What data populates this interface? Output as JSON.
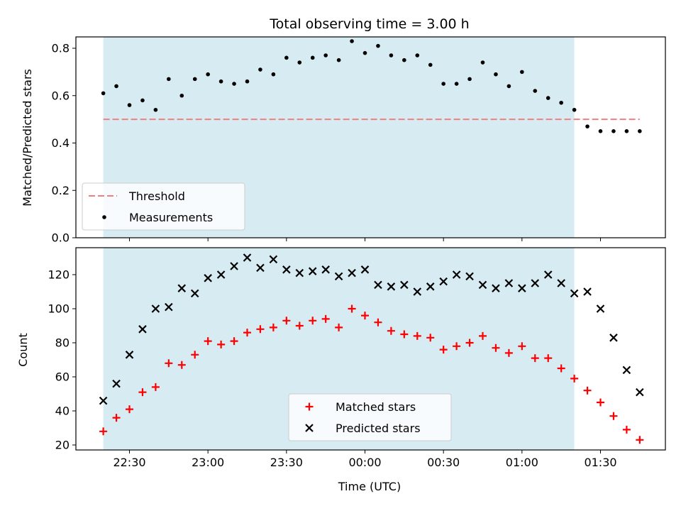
{
  "chart_data": [
    {
      "type": "scatter",
      "title": "Total observing time = 3.00 h",
      "xlabel": "",
      "ylabel": "Matched/Predicted stars",
      "ylim": [
        0,
        0.85
      ],
      "yticks": [
        "0.0",
        "0.2",
        "0.4",
        "0.6",
        "0.8"
      ],
      "shaded_span": [
        "22:20",
        "01:20"
      ],
      "threshold": 0.5,
      "legend_position": "lower-left",
      "legend": [
        "Threshold",
        "Measurements"
      ],
      "x": [
        "22:20",
        "22:25",
        "22:30",
        "22:35",
        "22:40",
        "22:45",
        "22:50",
        "22:55",
        "23:00",
        "23:05",
        "23:10",
        "23:15",
        "23:20",
        "23:25",
        "23:30",
        "23:35",
        "23:40",
        "23:45",
        "23:50",
        "23:55",
        "00:00",
        "00:05",
        "00:10",
        "00:15",
        "00:20",
        "00:25",
        "00:30",
        "00:35",
        "00:40",
        "00:45",
        "00:50",
        "00:55",
        "01:00",
        "01:05",
        "01:10",
        "01:15",
        "01:20",
        "01:25",
        "01:30",
        "01:35",
        "01:40",
        "01:45"
      ],
      "series": [
        {
          "name": "Measurements",
          "values": [
            0.61,
            0.64,
            0.56,
            0.58,
            0.54,
            0.67,
            0.6,
            0.67,
            0.69,
            0.66,
            0.65,
            0.66,
            0.71,
            0.69,
            0.76,
            0.74,
            0.76,
            0.77,
            0.75,
            0.83,
            0.78,
            0.81,
            0.77,
            0.75,
            0.77,
            0.73,
            0.65,
            0.65,
            0.67,
            0.74,
            0.69,
            0.64,
            0.7,
            0.62,
            0.59,
            0.57,
            0.54,
            0.47,
            0.45,
            0.45,
            0.45,
            0.45
          ]
        }
      ]
    },
    {
      "type": "scatter",
      "title": "",
      "xlabel": "Time (UTC)",
      "ylabel": "Count",
      "ylim": [
        18,
        135
      ],
      "yticks": [
        "20",
        "40",
        "60",
        "80",
        "100",
        "120"
      ],
      "xticks": [
        "22:30",
        "23:00",
        "23:30",
        "00:00",
        "00:30",
        "01:00",
        "01:30"
      ],
      "shaded_span": [
        "22:20",
        "01:20"
      ],
      "legend_position": "lower-center",
      "legend": [
        "Matched stars",
        "Predicted stars"
      ],
      "x": [
        "22:20",
        "22:25",
        "22:30",
        "22:35",
        "22:40",
        "22:45",
        "22:50",
        "22:55",
        "23:00",
        "23:05",
        "23:10",
        "23:15",
        "23:20",
        "23:25",
        "23:30",
        "23:35",
        "23:40",
        "23:45",
        "23:50",
        "23:55",
        "00:00",
        "00:05",
        "00:10",
        "00:15",
        "00:20",
        "00:25",
        "00:30",
        "00:35",
        "00:40",
        "00:45",
        "00:50",
        "00:55",
        "01:00",
        "01:05",
        "01:10",
        "01:15",
        "01:20",
        "01:25",
        "01:30",
        "01:35",
        "01:40",
        "01:45"
      ],
      "series": [
        {
          "name": "Matched stars",
          "values": [
            28,
            36,
            41,
            51,
            54,
            68,
            67,
            73,
            81,
            79,
            81,
            86,
            88,
            89,
            93,
            90,
            93,
            94,
            89,
            100,
            96,
            92,
            87,
            85,
            84,
            83,
            76,
            78,
            80,
            84,
            77,
            74,
            78,
            71,
            71,
            65,
            59,
            52,
            45,
            37,
            29,
            23
          ]
        },
        {
          "name": "Predicted stars",
          "values": [
            46,
            56,
            73,
            88,
            100,
            101,
            112,
            109,
            118,
            120,
            125,
            130,
            124,
            129,
            123,
            121,
            122,
            123,
            119,
            121,
            123,
            114,
            113,
            114,
            110,
            113,
            116,
            120,
            119,
            114,
            112,
            115,
            112,
            115,
            120,
            115,
            109,
            110,
            100,
            83,
            64,
            51
          ]
        }
      ]
    }
  ],
  "colors": {
    "span_fill": "#add8e6",
    "span_alpha": 0.5,
    "threshold": "#f08080",
    "measurements": "#000000",
    "matched": "#ff0000",
    "predicted": "#000000"
  }
}
